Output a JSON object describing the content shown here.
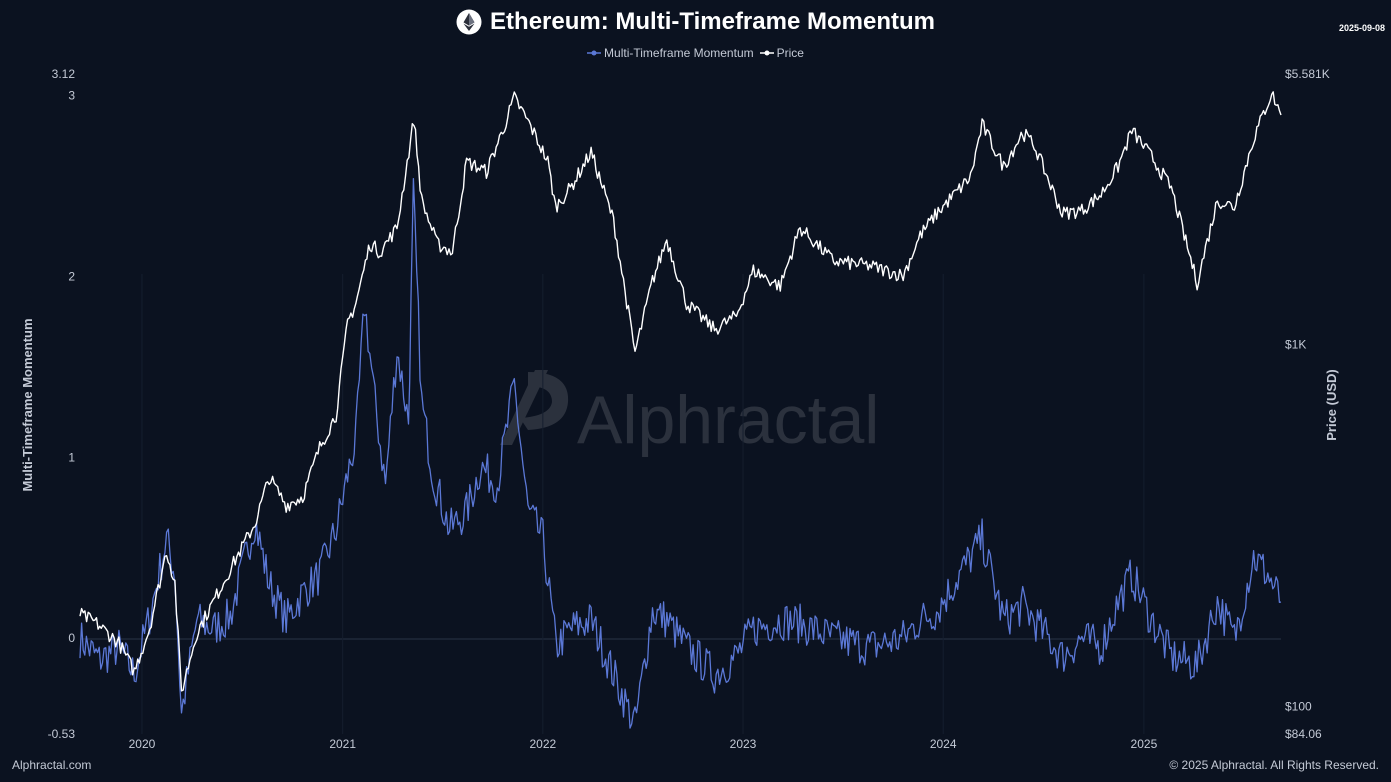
{
  "header": {
    "title": "Ethereum: Multi-Timeframe Momentum",
    "date": "2025-09-08"
  },
  "icons": {
    "title_icon": "ethereum-logo-icon"
  },
  "watermark": "Alphractal",
  "footer": {
    "left": "Alphractal.com",
    "right": "© 2025 Alphractal. All Rights Reserved."
  },
  "colors": {
    "background": "#0b1220",
    "momentum": "#5b78d6",
    "price": "#ffffff"
  },
  "chart_data": {
    "type": "line",
    "title": "Ethereum: Multi-Timeframe Momentum",
    "legend_position": "top-center",
    "grid": false,
    "xaxis": {
      "type": "date",
      "range": [
        "2019-09-10",
        "2025-09-08"
      ],
      "ticks": [
        {
          "date": "2020-01-01",
          "label": "2020"
        },
        {
          "date": "2021-01-01",
          "label": "2021"
        },
        {
          "date": "2022-01-01",
          "label": "2022"
        },
        {
          "date": "2023-01-01",
          "label": "2023"
        },
        {
          "date": "2024-01-01",
          "label": "2024"
        },
        {
          "date": "2025-01-01",
          "label": "2025"
        }
      ]
    },
    "y_left": {
      "label": "Multi-Timeframe Momentum",
      "range": [
        -0.53,
        3.12
      ],
      "ticks": [
        {
          "value": 3.12,
          "label": "3.12"
        },
        {
          "value": 3,
          "label": "3"
        },
        {
          "value": 2,
          "label": "2"
        },
        {
          "value": 1,
          "label": "1"
        },
        {
          "value": 0,
          "label": "0"
        },
        {
          "value": -0.53,
          "label": "-0.53"
        }
      ]
    },
    "y_right": {
      "label": "Price (USD)",
      "scale": "log",
      "range": [
        84.06,
        5581
      ],
      "ticks": [
        {
          "value": 5581,
          "label": "$5.581K"
        },
        {
          "value": 1000,
          "label": "$1K"
        },
        {
          "value": 100,
          "label": "$100"
        },
        {
          "value": 84.06,
          "label": "$84.06"
        }
      ]
    },
    "series": [
      {
        "name": "Multi-Timeframe Momentum",
        "axis": "left",
        "color": "#5b78d6",
        "points": [
          [
            "2019-09-10",
            0.0
          ],
          [
            "2019-10-15",
            -0.12
          ],
          [
            "2019-11-20",
            -0.05
          ],
          [
            "2019-12-18",
            -0.2
          ],
          [
            "2020-01-15",
            0.12
          ],
          [
            "2020-02-15",
            0.55
          ],
          [
            "2020-03-01",
            0.35
          ],
          [
            "2020-03-13",
            -0.42
          ],
          [
            "2020-04-10",
            0.1
          ],
          [
            "2020-05-10",
            0.05
          ],
          [
            "2020-06-10",
            0.12
          ],
          [
            "2020-07-25",
            0.65
          ],
          [
            "2020-08-20",
            0.3
          ],
          [
            "2020-09-20",
            0.1
          ],
          [
            "2020-10-20",
            0.25
          ],
          [
            "2020-11-20",
            0.35
          ],
          [
            "2020-12-20",
            0.6
          ],
          [
            "2021-01-10",
            0.9
          ],
          [
            "2021-01-25",
            1.1
          ],
          [
            "2021-02-10",
            1.85
          ],
          [
            "2021-03-01",
            1.3
          ],
          [
            "2021-03-20",
            0.85
          ],
          [
            "2021-04-10",
            1.6
          ],
          [
            "2021-05-01",
            1.2
          ],
          [
            "2021-05-10",
            2.45
          ],
          [
            "2021-05-25",
            1.3
          ],
          [
            "2021-06-15",
            0.9
          ],
          [
            "2021-07-15",
            0.6
          ],
          [
            "2021-08-15",
            0.7
          ],
          [
            "2021-09-10",
            0.95
          ],
          [
            "2021-10-10",
            0.85
          ],
          [
            "2021-11-10",
            1.4
          ],
          [
            "2021-12-05",
            0.7
          ],
          [
            "2022-01-01",
            0.55
          ],
          [
            "2022-01-25",
            -0.05
          ],
          [
            "2022-02-20",
            0.05
          ],
          [
            "2022-03-30",
            0.1
          ],
          [
            "2022-05-10",
            -0.2
          ],
          [
            "2022-06-18",
            -0.48
          ],
          [
            "2022-07-20",
            0.15
          ],
          [
            "2022-08-15",
            0.1
          ],
          [
            "2022-09-20",
            -0.05
          ],
          [
            "2022-11-10",
            -0.2
          ],
          [
            "2022-12-20",
            -0.1
          ],
          [
            "2023-01-20",
            0.05
          ],
          [
            "2023-03-10",
            0.1
          ],
          [
            "2023-04-15",
            0.08
          ],
          [
            "2023-06-15",
            0.0
          ],
          [
            "2023-08-20",
            -0.05
          ],
          [
            "2023-10-20",
            0.0
          ],
          [
            "2023-11-20",
            0.1
          ],
          [
            "2023-12-20",
            0.15
          ],
          [
            "2024-03-12",
            0.55
          ],
          [
            "2024-04-20",
            0.1
          ],
          [
            "2024-05-25",
            0.18
          ],
          [
            "2024-06-15",
            0.1
          ],
          [
            "2024-08-05",
            -0.1
          ],
          [
            "2024-09-10",
            0.0
          ],
          [
            "2024-10-15",
            -0.05
          ],
          [
            "2024-11-15",
            0.2
          ],
          [
            "2024-12-10",
            0.35
          ],
          [
            "2025-01-15",
            0.1
          ],
          [
            "2025-02-20",
            -0.1
          ],
          [
            "2025-04-08",
            -0.15
          ],
          [
            "2025-05-15",
            0.2
          ],
          [
            "2025-06-15",
            0.0
          ],
          [
            "2025-07-20",
            0.45
          ],
          [
            "2025-08-15",
            0.35
          ],
          [
            "2025-09-08",
            0.2
          ]
        ]
      },
      {
        "name": "Price",
        "axis": "right",
        "color": "#ffffff",
        "points": [
          [
            "2019-09-10",
            180
          ],
          [
            "2019-10-10",
            170
          ],
          [
            "2019-11-20",
            150
          ],
          [
            "2019-12-18",
            125
          ],
          [
            "2020-01-15",
            165
          ],
          [
            "2020-02-15",
            270
          ],
          [
            "2020-03-01",
            220
          ],
          [
            "2020-03-13",
            110
          ],
          [
            "2020-04-10",
            160
          ],
          [
            "2020-05-10",
            195
          ],
          [
            "2020-06-10",
            240
          ],
          [
            "2020-07-25",
            320
          ],
          [
            "2020-08-20",
            430
          ],
          [
            "2020-09-20",
            360
          ],
          [
            "2020-10-20",
            380
          ],
          [
            "2020-11-20",
            520
          ],
          [
            "2020-12-20",
            640
          ],
          [
            "2021-01-10",
            1150
          ],
          [
            "2021-01-25",
            1300
          ],
          [
            "2021-02-20",
            1900
          ],
          [
            "2021-03-10",
            1800
          ],
          [
            "2021-04-10",
            2100
          ],
          [
            "2021-05-11",
            4200
          ],
          [
            "2021-05-25",
            2500
          ],
          [
            "2021-06-22",
            1900
          ],
          [
            "2021-07-20",
            1800
          ],
          [
            "2021-08-15",
            3200
          ],
          [
            "2021-09-20",
            3000
          ],
          [
            "2021-10-20",
            3900
          ],
          [
            "2021-11-10",
            4800
          ],
          [
            "2021-12-10",
            4000
          ],
          [
            "2022-01-10",
            3200
          ],
          [
            "2022-01-24",
            2400
          ],
          [
            "2022-02-20",
            2700
          ],
          [
            "2022-03-30",
            3400
          ],
          [
            "2022-05-10",
            2200
          ],
          [
            "2022-06-18",
            950
          ],
          [
            "2022-07-20",
            1500
          ],
          [
            "2022-08-15",
            1950
          ],
          [
            "2022-09-20",
            1300
          ],
          [
            "2022-11-10",
            1100
          ],
          [
            "2022-12-20",
            1200
          ],
          [
            "2023-01-20",
            1600
          ],
          [
            "2023-03-10",
            1450
          ],
          [
            "2023-04-15",
            2100
          ],
          [
            "2023-06-15",
            1700
          ],
          [
            "2023-08-20",
            1650
          ],
          [
            "2023-10-20",
            1550
          ],
          [
            "2023-11-20",
            2000
          ],
          [
            "2023-12-20",
            2300
          ],
          [
            "2024-02-20",
            2900
          ],
          [
            "2024-03-12",
            4050
          ],
          [
            "2024-04-20",
            3100
          ],
          [
            "2024-05-25",
            3850
          ],
          [
            "2024-06-15",
            3550
          ],
          [
            "2024-08-05",
            2300
          ],
          [
            "2024-09-10",
            2350
          ],
          [
            "2024-10-15",
            2600
          ],
          [
            "2024-11-15",
            3100
          ],
          [
            "2024-12-10",
            3900
          ],
          [
            "2025-01-15",
            3300
          ],
          [
            "2025-02-20",
            2700
          ],
          [
            "2025-04-08",
            1480
          ],
          [
            "2025-05-15",
            2500
          ],
          [
            "2025-06-15",
            2400
          ],
          [
            "2025-07-20",
            3700
          ],
          [
            "2025-08-22",
            4950
          ],
          [
            "2025-09-08",
            4300
          ]
        ]
      }
    ]
  }
}
